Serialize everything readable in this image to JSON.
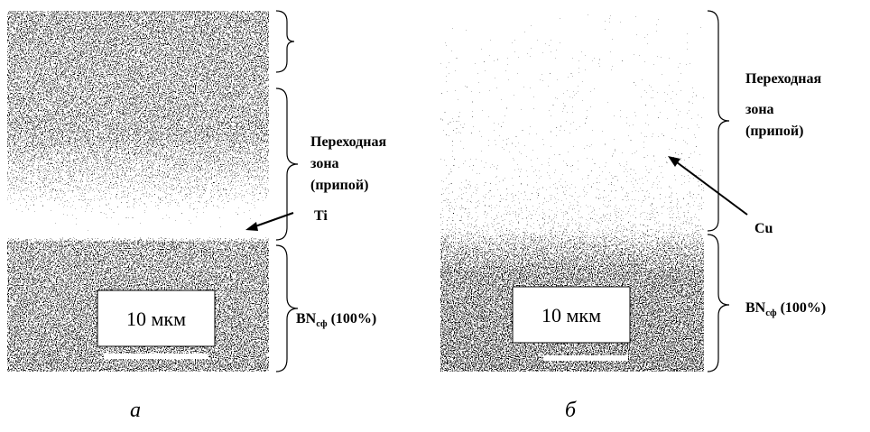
{
  "panels": [
    {
      "zone_label": [
        "Переходная",
        "зона",
        "(припой)"
      ],
      "element": "Ti",
      "substrate": "BN",
      "substrate_sub": "сф",
      "substrate_pct": "(100%)",
      "scale": "10 мкм",
      "caption": "а"
    },
    {
      "zone_label": [
        "Переходная",
        "зона",
        "(припой)"
      ],
      "element": "Cu",
      "substrate": "BN",
      "substrate_sub": "сф",
      "substrate_pct": "(100%)",
      "scale": "10 мкм",
      "caption": "б"
    }
  ]
}
